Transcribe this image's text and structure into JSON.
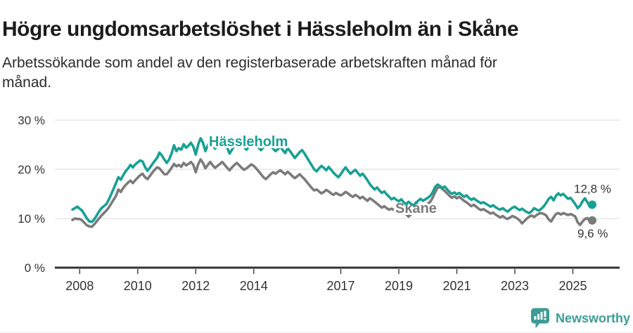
{
  "title": "Högre ungdomsarbetslöshet i Hässleholm än i Skåne",
  "subtitle": {
    "line1": "Arbetssökande som andel av den registerbaserade arbetskraften månad för",
    "line2": "månad.",
    "full": "Arbetssökande som andel av den registerbaserade arbetskraften månad för månad."
  },
  "footer": {
    "brand": "Newsworthy",
    "logo_icon": "bar-chart-speech-bubble-icon"
  },
  "colors": {
    "hassleholm_teal": "#18A094",
    "skane_gray": "#7b7b7b",
    "axis_text": "#333333",
    "gridline": "#d9d9d9",
    "baseline": "#333333",
    "title_text": "#1c1c1c",
    "logo_teal": "#3d9c96"
  },
  "chart_data": {
    "type": "line",
    "title": "Högre ungdomsarbetslöshet i Hässleholm än i Skåne",
    "subtitle": "Arbetssökande som andel av den registerbaserade arbetskraften månad för månad.",
    "frequency": "monthly",
    "x_start": "2007-10",
    "x_end": "2025-09",
    "x_start_year": 2007,
    "x_start_month": 10,
    "ylim": [
      0,
      32
    ],
    "grid": "horizontal",
    "legend_position": "inline-labels",
    "yticks": [
      0,
      10,
      20,
      30
    ],
    "ytick_labels": [
      "0 %",
      "10 %",
      "20 %",
      "30 %"
    ],
    "xtick_years": [
      2008,
      2010,
      2012,
      2014,
      2017,
      2019,
      2021,
      2023,
      2025
    ],
    "xtick_labels": [
      "2008",
      "2010",
      "2012",
      "2014",
      "2017",
      "2019",
      "2021",
      "2023",
      "2025"
    ],
    "series": [
      {
        "name": "Skåne",
        "color": "#7b7b7b",
        "end_label": "9,6 %",
        "end_value": 9.6,
        "values": [
          9.7,
          10.0,
          9.9,
          9.9,
          9.6,
          9.1,
          8.6,
          8.4,
          8.3,
          8.8,
          9.4,
          10.0,
          10.6,
          11.1,
          11.6,
          12.2,
          13.0,
          13.8,
          14.6,
          15.9,
          15.4,
          16.2,
          16.8,
          17.3,
          17.7,
          17.2,
          17.8,
          18.3,
          18.8,
          19.1,
          18.4,
          18.0,
          18.6,
          19.3,
          19.9,
          20.4,
          20.2,
          19.6,
          19.0,
          19.0,
          19.6,
          20.3,
          21.1,
          20.6,
          20.9,
          20.5,
          21.3,
          20.8,
          21.1,
          21.5,
          20.9,
          19.4,
          21.0,
          22.0,
          21.3,
          20.2,
          20.9,
          21.5,
          20.8,
          20.3,
          20.7,
          21.1,
          21.5,
          20.9,
          20.3,
          19.8,
          20.4,
          20.9,
          21.3,
          20.8,
          20.3,
          19.9,
          20.2,
          20.6,
          21.0,
          20.7,
          20.2,
          19.6,
          19.0,
          18.4,
          18.0,
          18.5,
          19.0,
          19.4,
          19.1,
          19.5,
          19.8,
          19.4,
          19.0,
          19.5,
          19.1,
          18.6,
          18.2,
          18.6,
          19.0,
          18.5,
          18.0,
          17.4,
          16.8,
          16.2,
          15.7,
          15.9,
          15.5,
          15.1,
          15.4,
          15.8,
          15.5,
          15.1,
          14.8,
          15.2,
          14.9,
          14.7,
          15.0,
          15.4,
          15.1,
          14.7,
          14.4,
          14.8,
          14.5,
          14.1,
          14.4,
          14.0,
          13.6,
          14.1,
          13.8,
          13.4,
          13.0,
          12.6,
          12.2,
          12.5,
          12.1,
          11.8,
          12.0,
          11.7,
          12.1,
          12.4,
          12.0,
          11.5,
          10.9,
          10.4,
          10.8,
          11.3,
          11.8,
          12.2,
          11.9,
          12.3,
          12.7,
          13.0,
          13.4,
          14.2,
          15.3,
          16.2,
          16.4,
          16.0,
          15.6,
          15.1,
          14.6,
          14.2,
          14.5,
          14.1,
          14.4,
          14.0,
          13.6,
          13.3,
          12.9,
          12.5,
          12.8,
          12.4,
          12.0,
          11.7,
          11.9,
          11.6,
          11.3,
          11.0,
          11.2,
          10.8,
          10.5,
          10.2,
          10.5,
          10.1,
          9.9,
          10.2,
          10.5,
          10.3,
          10.0,
          9.6,
          9.0,
          9.5,
          10.0,
          10.4,
          10.6,
          10.3,
          10.7,
          11.0,
          11.1,
          10.9,
          10.6,
          9.8,
          9.4,
          10.2,
          10.9,
          11.1,
          10.8,
          11.1,
          10.9,
          10.7,
          10.9,
          10.7,
          10.4,
          9.2,
          8.7,
          9.4,
          9.9,
          10.1,
          9.4,
          9.6
        ]
      },
      {
        "name": "Hässleholm",
        "color": "#18A094",
        "end_label": "12,8 %",
        "end_value": 12.8,
        "values": [
          11.8,
          12.1,
          12.4,
          12.0,
          11.6,
          10.8,
          10.0,
          9.4,
          9.3,
          9.8,
          10.6,
          11.4,
          12.1,
          12.5,
          12.9,
          13.8,
          14.9,
          16.0,
          17.2,
          18.4,
          17.9,
          18.8,
          19.6,
          20.2,
          20.9,
          20.4,
          21.0,
          21.4,
          21.8,
          21.6,
          20.5,
          19.7,
          20.3,
          21.0,
          21.7,
          22.3,
          23.4,
          22.8,
          22.0,
          21.3,
          22.0,
          23.2,
          24.9,
          23.7,
          24.3,
          24.0,
          25.1,
          24.4,
          24.8,
          25.4,
          24.6,
          23.0,
          25.0,
          26.3,
          25.4,
          23.7,
          24.9,
          25.6,
          24.8,
          24.2,
          24.7,
          25.2,
          25.7,
          25.1,
          24.4,
          23.2,
          24.0,
          24.8,
          25.5,
          25.9,
          25.2,
          24.5,
          24.0,
          24.6,
          25.2,
          25.6,
          25.0,
          24.4,
          23.9,
          24.5,
          25.1,
          25.5,
          24.8,
          24.2,
          23.7,
          24.1,
          24.7,
          23.9,
          23.3,
          24.3,
          23.7,
          23.0,
          22.3,
          22.9,
          23.5,
          23.9,
          23.2,
          22.4,
          21.6,
          20.8,
          20.0,
          19.6,
          20.2,
          20.7,
          20.3,
          19.8,
          20.5,
          19.9,
          19.3,
          18.8,
          18.4,
          19.0,
          19.8,
          20.4,
          19.7,
          19.1,
          19.5,
          19.9,
          19.3,
          18.7,
          19.1,
          18.5,
          17.8,
          17.0,
          16.4,
          15.9,
          16.3,
          15.7,
          15.2,
          15.5,
          14.9,
          14.4,
          13.9,
          14.2,
          13.8,
          13.5,
          13.9,
          13.3,
          12.9,
          13.4,
          13.0,
          12.7,
          13.1,
          13.6,
          14.0,
          13.6,
          13.9,
          14.2,
          14.6,
          15.3,
          16.4,
          16.9,
          16.6,
          16.2,
          16.5,
          15.9,
          15.4,
          15.0,
          15.3,
          14.9,
          15.2,
          14.8,
          14.4,
          14.7,
          14.2,
          13.8,
          14.1,
          13.7,
          13.4,
          13.1,
          13.3,
          13.0,
          12.7,
          12.4,
          12.7,
          12.3,
          12.0,
          11.8,
          12.1,
          11.7,
          11.4,
          11.8,
          12.2,
          12.4,
          12.0,
          11.7,
          12.0,
          11.6,
          11.3,
          11.1,
          11.5,
          12.1,
          11.8,
          11.6,
          12.0,
          12.5,
          13.2,
          14.0,
          14.4,
          13.7,
          14.6,
          15.1,
          14.7,
          15.0,
          14.5,
          14.0,
          14.2,
          13.6,
          12.9,
          12.1,
          12.6,
          13.5,
          14.1,
          13.3,
          12.4,
          12.8
        ]
      }
    ]
  }
}
